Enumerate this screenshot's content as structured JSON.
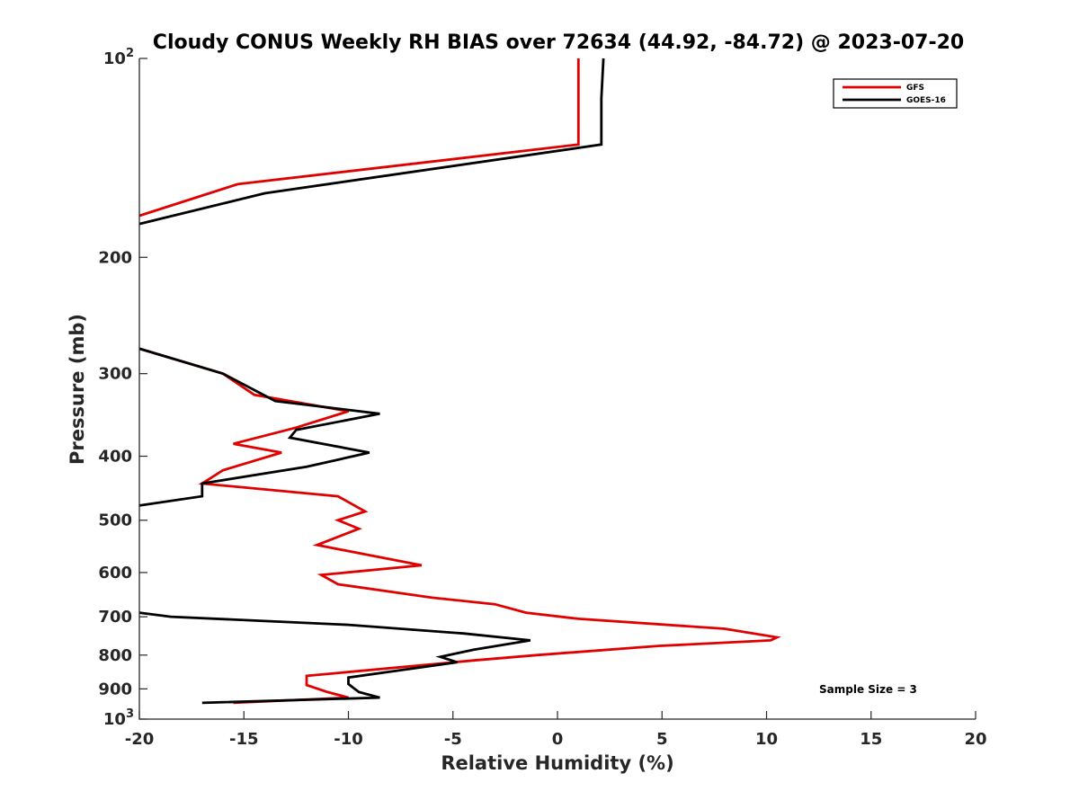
{
  "chart_data": {
    "type": "line",
    "title": "Cloudy CONUS Weekly RH BIAS over 72634 (44.92, -84.72) @ 2023-07-20",
    "xlabel": "Relative Humidity (%)",
    "ylabel": "Pressure (mb)",
    "xlim": [
      -20,
      20
    ],
    "ylim": [
      100,
      1000
    ],
    "y_scale": "log",
    "y_reversed": true,
    "x_ticks": [
      -20,
      -15,
      -10,
      -5,
      0,
      5,
      10,
      15,
      20
    ],
    "x_tick_labels": [
      "-20",
      "-15",
      "-10",
      "-5",
      "0",
      "5",
      "10",
      "15",
      "20"
    ],
    "y_ticks": [
      200,
      300,
      400,
      500,
      600,
      700,
      800,
      900
    ],
    "y_tick_labels": [
      "200",
      "300",
      "400",
      "500",
      "600",
      "700",
      "800",
      "900"
    ],
    "y_end_labels": [
      {
        "value": 100,
        "base": "10",
        "exp": "2"
      },
      {
        "value": 1000,
        "base": "10",
        "exp": "3"
      }
    ],
    "grid": false,
    "legend": "top-right",
    "annotation": "Sample Size = 3",
    "series": [
      {
        "name": "GFS",
        "color": "#e00000",
        "segments": [
          [
            [
              1.0,
              100
            ],
            [
              1.0,
              135
            ],
            [
              -15.3,
              155
            ],
            [
              -20.0,
              173
            ]
          ],
          [
            [
              -20.0,
              275
            ],
            [
              -16.0,
              300
            ],
            [
              -14.5,
              323
            ],
            [
              -10.0,
              342
            ],
            [
              -12.5,
              362
            ],
            [
              -15.5,
              383
            ],
            [
              -13.2,
              395
            ],
            [
              -16.0,
              420
            ],
            [
              -17.0,
              440
            ],
            [
              -10.5,
              460
            ],
            [
              -9.2,
              485
            ],
            [
              -10.5,
              500
            ],
            [
              -9.5,
              515
            ],
            [
              -11.5,
              545
            ],
            [
              -6.5,
              585
            ],
            [
              -11.3,
              605
            ],
            [
              -10.5,
              625
            ],
            [
              -6.0,
              655
            ],
            [
              -3.0,
              670
            ],
            [
              -1.5,
              690
            ],
            [
              1.0,
              705
            ],
            [
              8.0,
              730
            ],
            [
              10.5,
              752
            ],
            [
              10.2,
              760
            ],
            [
              4.8,
              775
            ],
            [
              -1.0,
              800
            ],
            [
              -4.0,
              815
            ],
            [
              -12.0,
              860
            ],
            [
              -12.0,
              888
            ],
            [
              -11.0,
              910
            ],
            [
              -10.0,
              928
            ],
            [
              -15.5,
              945
            ]
          ]
        ]
      },
      {
        "name": "GOES-16",
        "color": "#000000",
        "segments": [
          [
            [
              2.2,
              100
            ],
            [
              2.1,
              115
            ],
            [
              2.1,
              135
            ],
            [
              -14.0,
              160
            ],
            [
              -20.0,
              178
            ]
          ],
          [
            [
              -20.0,
              275
            ],
            [
              -16.0,
              300
            ],
            [
              -13.5,
              330
            ],
            [
              -8.5,
              345
            ],
            [
              -12.5,
              365
            ],
            [
              -12.8,
              375
            ],
            [
              -9.0,
              395
            ],
            [
              -12.0,
              415
            ],
            [
              -17.0,
              440
            ],
            [
              -17.0,
              460
            ],
            [
              -20.0,
              475
            ]
          ],
          [
            [
              -20.0,
              690
            ],
            [
              -18.5,
              700
            ],
            [
              -10.0,
              720
            ],
            [
              -4.5,
              742
            ],
            [
              -1.3,
              760
            ],
            [
              -4.0,
              785
            ],
            [
              -5.6,
              805
            ],
            [
              -4.8,
              820
            ],
            [
              -10.0,
              865
            ],
            [
              -10.0,
              885
            ],
            [
              -9.5,
              910
            ],
            [
              -8.5,
              928
            ],
            [
              -17.0,
              945
            ]
          ]
        ]
      }
    ]
  }
}
